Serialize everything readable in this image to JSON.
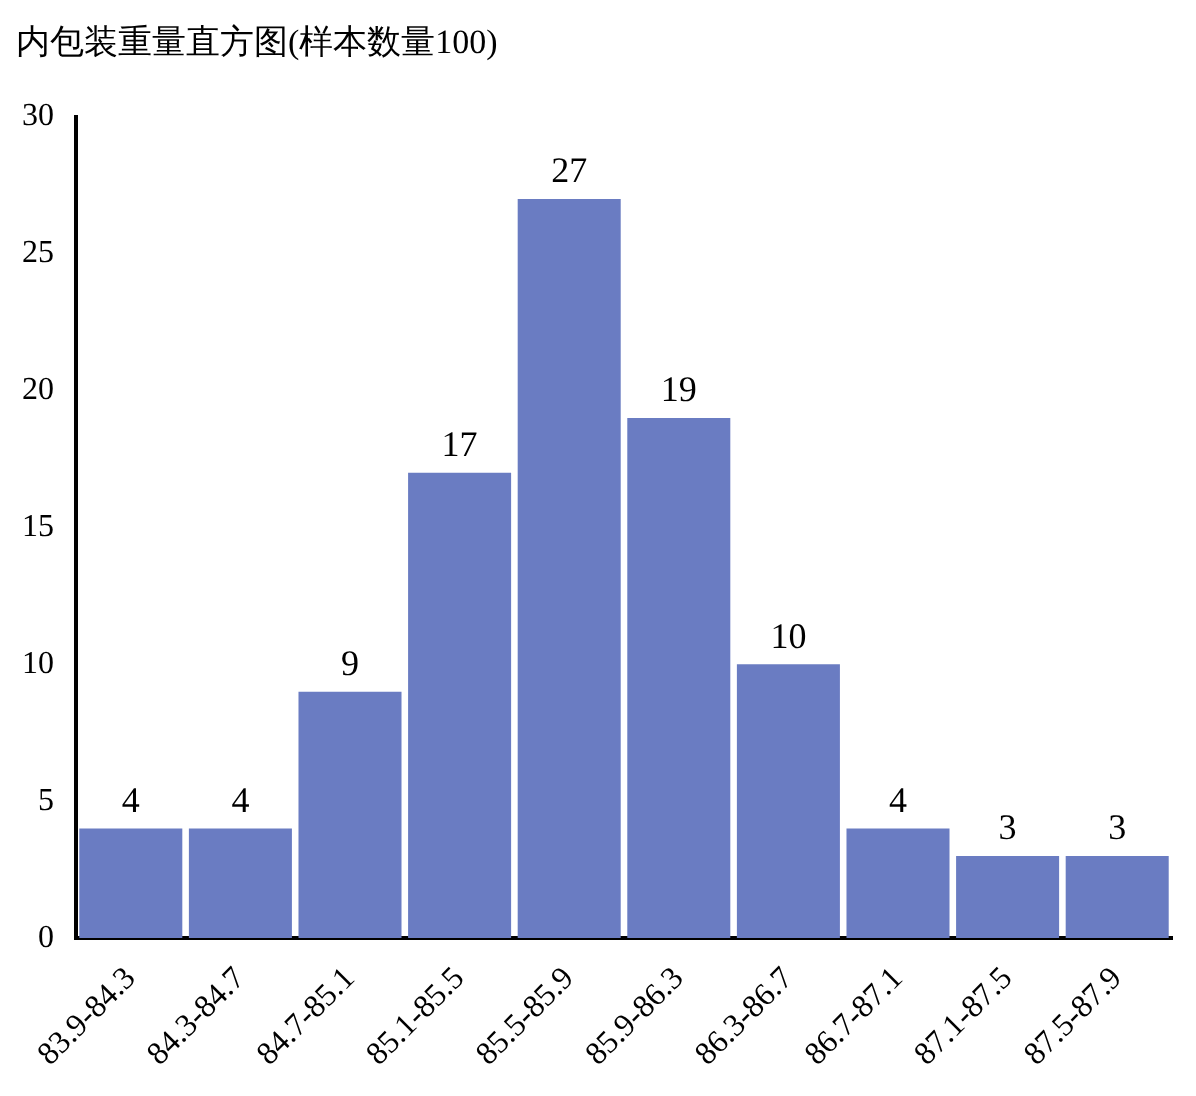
{
  "chart_data": {
    "type": "bar",
    "title": "内包装重量直方图(样本数量100)",
    "categories": [
      "83.9-84.3",
      "84.3-84.7",
      "84.7-85.1",
      "85.1-85.5",
      "85.5-85.9",
      "85.9-86.3",
      "86.3-86.7",
      "86.7-87.1",
      "87.1-87.5",
      "87.5-87.9"
    ],
    "values": [
      4,
      4,
      9,
      17,
      27,
      19,
      10,
      4,
      3,
      3
    ],
    "color": "#6a7cc2",
    "ylim": [
      0,
      30
    ],
    "yticks": [
      0,
      5,
      10,
      15,
      20,
      25,
      30
    ],
    "grid": false,
    "legend": false,
    "data_labels": true
  }
}
